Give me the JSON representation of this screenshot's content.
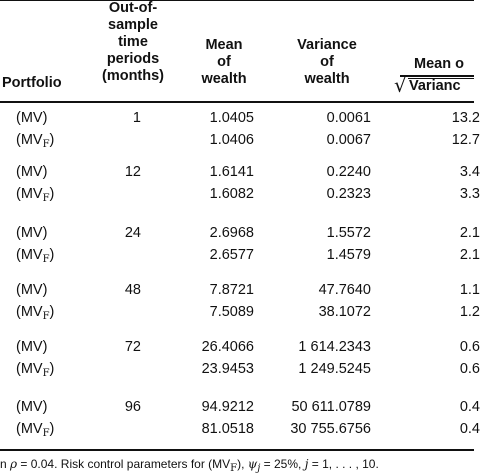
{
  "header": {
    "portfolio": "Portfolio",
    "periods_lines": [
      "Out-of-",
      "sample",
      "time",
      "periods",
      "(months)"
    ],
    "mean_lines": [
      "Mean",
      "of",
      "wealth"
    ],
    "variance_lines": [
      "Variance",
      "of",
      "wealth"
    ],
    "ratio_top": "Mean o",
    "ratio_bottom": "Varianc"
  },
  "rows": [
    {
      "label": "(MV)",
      "sub": "",
      "period": "1",
      "mean": "1.0405",
      "variance": "0.0061",
      "ratio": "13.2"
    },
    {
      "label": "(MV",
      "sub": "F",
      "period": "",
      "mean": "1.0406",
      "variance": "0.0067",
      "ratio": "12.7"
    },
    {
      "label": "(MV)",
      "sub": "",
      "period": "12",
      "mean": "1.6141",
      "variance": "0.2240",
      "ratio": "3.4"
    },
    {
      "label": "(MV",
      "sub": "F",
      "period": "",
      "mean": "1.6082",
      "variance": "0.2323",
      "ratio": "3.3"
    },
    {
      "label": "(MV)",
      "sub": "",
      "period": "24",
      "mean": "2.6968",
      "variance": "1.5572",
      "ratio": "2.1"
    },
    {
      "label": "(MV",
      "sub": "F",
      "period": "",
      "mean": "2.6577",
      "variance": "1.4579",
      "ratio": "2.1"
    },
    {
      "label": "(MV)",
      "sub": "",
      "period": "48",
      "mean": "7.8721",
      "variance": "47.7640",
      "ratio": "1.1"
    },
    {
      "label": "(MV",
      "sub": "F",
      "period": "",
      "mean": "7.5089",
      "variance": "38.1072",
      "ratio": "1.2"
    },
    {
      "label": "(MV)",
      "sub": "",
      "period": "72",
      "mean": "26.4066",
      "variance": "1 614.2343",
      "ratio": "0.6"
    },
    {
      "label": "(MV",
      "sub": "F",
      "period": "",
      "mean": "23.9453",
      "variance": "1 249.5245",
      "ratio": "0.6"
    },
    {
      "label": "(MV)",
      "sub": "",
      "period": "96",
      "mean": "94.9212",
      "variance": "50 611.0789",
      "ratio": "0.4"
    },
    {
      "label": "(MV",
      "sub": "F",
      "period": "",
      "mean": "81.0518",
      "variance": "30 755.6756",
      "ratio": "0.4"
    }
  ],
  "footnote": {
    "part1": "n ",
    "rho": "ρ",
    "part2": " = 0.04. Risk control parameters for (MV",
    "sub": "F",
    "part3": "), ",
    "psi": "ψ",
    "j_sub": "j",
    "part4": " = 25%, ",
    "j": "j",
    "part5": " = 1, . . . , 10."
  }
}
